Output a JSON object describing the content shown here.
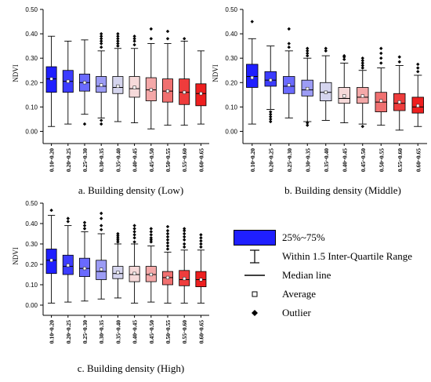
{
  "chart_data": [
    {
      "type": "box",
      "panel": "a",
      "caption": "a. Building density (Low)",
      "ylabel": "NDVI",
      "ylim": [
        -0.05,
        0.5
      ],
      "yticks": [
        "0.00",
        "0.10",
        "0.20",
        "0.30",
        "0.40",
        "0.50"
      ],
      "categories": [
        "0.10~0.20",
        "0.20~0.25",
        "0.25~0.30",
        "0.30~0.35",
        "0.35~0.40",
        "0.40~0.45",
        "0.45~0.50",
        "0.50~0.55",
        "0.55~0.60",
        "0.60~0.65"
      ],
      "colors": [
        "#1f1fff",
        "#3c3cff",
        "#6a6aff",
        "#9c9cf5",
        "#d5d5ee",
        "#f6dada",
        "#f4a8a8",
        "#f07070",
        "#ee3c3c",
        "#ee1f1f"
      ],
      "boxes": [
        {
          "whisker_low": 0.02,
          "q1": 0.16,
          "median": 0.215,
          "q3": 0.265,
          "whisker_high": 0.39,
          "mean": 0.215,
          "outliers": []
        },
        {
          "whisker_low": 0.03,
          "q1": 0.16,
          "median": 0.205,
          "q3": 0.25,
          "whisker_high": 0.37,
          "mean": 0.205,
          "outliers": []
        },
        {
          "whisker_low": 0.07,
          "q1": 0.165,
          "median": 0.2,
          "q3": 0.235,
          "whisker_high": 0.375,
          "mean": 0.2,
          "outliers": [
            0.03
          ]
        },
        {
          "whisker_low": 0.055,
          "q1": 0.16,
          "median": 0.185,
          "q3": 0.225,
          "whisker_high": 0.33,
          "mean": 0.19,
          "outliers": [
            0.345,
            0.36,
            0.37,
            0.38,
            0.39,
            0.4,
            0.045,
            0.03
          ]
        },
        {
          "whisker_low": 0.04,
          "q1": 0.155,
          "median": 0.18,
          "q3": 0.225,
          "whisker_high": 0.34,
          "mean": 0.185,
          "outliers": [
            0.35,
            0.36,
            0.37,
            0.38,
            0.39,
            0.4
          ]
        },
        {
          "whisker_low": 0.035,
          "q1": 0.14,
          "median": 0.175,
          "q3": 0.225,
          "whisker_high": 0.34,
          "mean": 0.18,
          "outliers": [
            0.355,
            0.37,
            0.38,
            0.39
          ]
        },
        {
          "whisker_low": 0.01,
          "q1": 0.125,
          "median": 0.17,
          "q3": 0.22,
          "whisker_high": 0.36,
          "mean": 0.17,
          "outliers": [
            0.38,
            0.42
          ]
        },
        {
          "whisker_low": 0.025,
          "q1": 0.12,
          "median": 0.165,
          "q3": 0.215,
          "whisker_high": 0.36,
          "mean": 0.165,
          "outliers": [
            0.38,
            0.41
          ]
        },
        {
          "whisker_low": 0.025,
          "q1": 0.11,
          "median": 0.16,
          "q3": 0.215,
          "whisker_high": 0.37,
          "mean": 0.16,
          "outliers": [
            0.38
          ]
        },
        {
          "whisker_low": 0.03,
          "q1": 0.105,
          "median": 0.155,
          "q3": 0.195,
          "whisker_high": 0.33,
          "mean": 0.155,
          "outliers": []
        }
      ]
    },
    {
      "type": "box",
      "panel": "b",
      "caption": "b. Building density (Middle)",
      "ylabel": "NDVI",
      "ylim": [
        -0.05,
        0.5
      ],
      "yticks": [
        "0.00",
        "0.10",
        "0.20",
        "0.30",
        "0.40",
        "0.50"
      ],
      "categories": [
        "0.10~0.20",
        "0.20~0.25",
        "0.25~0.30",
        "0.30~0.35",
        "0.35~0.40",
        "0.40~0.45",
        "0.45~0.50",
        "0.50~0.55",
        "0.55~0.60",
        "0.60~0.65"
      ],
      "colors": [
        "#1f1fff",
        "#3c3cff",
        "#6a6aff",
        "#9c9cf5",
        "#d5d5ee",
        "#f6dada",
        "#f4a8a8",
        "#f07070",
        "#ee3c3c",
        "#ee1f1f"
      ],
      "boxes": [
        {
          "whisker_low": 0.03,
          "q1": 0.18,
          "median": 0.225,
          "q3": 0.275,
          "whisker_high": 0.38,
          "mean": 0.22,
          "outliers": [
            0.45
          ]
        },
        {
          "whisker_low": 0.09,
          "q1": 0.185,
          "median": 0.21,
          "q3": 0.245,
          "whisker_high": 0.35,
          "mean": 0.21,
          "outliers": [
            0.08,
            0.07,
            0.06,
            0.05,
            0.04
          ]
        },
        {
          "whisker_low": 0.055,
          "q1": 0.155,
          "median": 0.185,
          "q3": 0.225,
          "whisker_high": 0.33,
          "mean": 0.19,
          "outliers": [
            0.345,
            0.36,
            0.42
          ]
        },
        {
          "whisker_low": 0.04,
          "q1": 0.145,
          "median": 0.17,
          "q3": 0.21,
          "whisker_high": 0.3,
          "mean": 0.175,
          "outliers": [
            0.31,
            0.32,
            0.33,
            0.34,
            0.035,
            0.025
          ]
        },
        {
          "whisker_low": 0.045,
          "q1": 0.125,
          "median": 0.16,
          "q3": 0.2,
          "whisker_high": 0.31,
          "mean": 0.16,
          "outliers": [
            0.33,
            0.34
          ]
        },
        {
          "whisker_low": 0.035,
          "q1": 0.115,
          "median": 0.135,
          "q3": 0.18,
          "whisker_high": 0.28,
          "mean": 0.145,
          "outliers": [
            0.295,
            0.305,
            0.31
          ]
        },
        {
          "whisker_low": 0.03,
          "q1": 0.115,
          "median": 0.14,
          "q3": 0.18,
          "whisker_high": 0.25,
          "mean": 0.145,
          "outliers": [
            0.26,
            0.27,
            0.28,
            0.29,
            0.3,
            0.02
          ]
        },
        {
          "whisker_low": 0.025,
          "q1": 0.08,
          "median": 0.12,
          "q3": 0.16,
          "whisker_high": 0.26,
          "mean": 0.125,
          "outliers": [
            0.28,
            0.3,
            0.32,
            0.34
          ]
        },
        {
          "whisker_low": 0.005,
          "q1": 0.085,
          "median": 0.115,
          "q3": 0.155,
          "whisker_high": 0.27,
          "mean": 0.12,
          "outliers": [
            0.285,
            0.305
          ]
        },
        {
          "whisker_low": 0.02,
          "q1": 0.075,
          "median": 0.1,
          "q3": 0.14,
          "whisker_high": 0.23,
          "mean": 0.105,
          "outliers": [
            0.245,
            0.26,
            0.275
          ]
        }
      ]
    },
    {
      "type": "box",
      "panel": "c",
      "caption": "c. Building density (High)",
      "ylabel": "NDVI",
      "ylim": [
        -0.05,
        0.5
      ],
      "yticks": [
        "0.00",
        "0.10",
        "0.20",
        "0.30",
        "0.40",
        "0.50"
      ],
      "categories": [
        "0.10~0.20",
        "0.20~0.25",
        "0.25~0.30",
        "0.30~0.35",
        "0.35~0.40",
        "0.40~0.45",
        "0.45~0.50",
        "0.50~0.55",
        "0.55~0.60",
        "0.60~0.65"
      ],
      "colors": [
        "#1f1fff",
        "#3c3cff",
        "#6a6aff",
        "#9c9cf5",
        "#d5d5ee",
        "#f6dada",
        "#f4a8a8",
        "#f07070",
        "#ee3c3c",
        "#ee1f1f"
      ],
      "boxes": [
        {
          "whisker_low": 0.01,
          "q1": 0.155,
          "median": 0.22,
          "q3": 0.275,
          "whisker_high": 0.44,
          "mean": 0.22,
          "outliers": [
            0.465
          ]
        },
        {
          "whisker_low": 0.015,
          "q1": 0.15,
          "median": 0.19,
          "q3": 0.245,
          "whisker_high": 0.39,
          "mean": 0.195,
          "outliers": [
            0.41,
            0.425
          ]
        },
        {
          "whisker_low": 0.02,
          "q1": 0.14,
          "median": 0.18,
          "q3": 0.23,
          "whisker_high": 0.36,
          "mean": 0.18,
          "outliers": [
            0.375,
            0.39,
            0.405
          ]
        },
        {
          "whisker_low": 0.03,
          "q1": 0.125,
          "median": 0.165,
          "q3": 0.22,
          "whisker_high": 0.35,
          "mean": 0.175,
          "outliers": [
            0.37,
            0.39,
            0.425,
            0.45
          ]
        },
        {
          "whisker_low": 0.035,
          "q1": 0.13,
          "median": 0.155,
          "q3": 0.19,
          "whisker_high": 0.3,
          "mean": 0.16,
          "outliers": [
            0.31,
            0.32,
            0.33,
            0.34,
            0.35
          ]
        },
        {
          "whisker_low": 0.01,
          "q1": 0.115,
          "median": 0.15,
          "q3": 0.19,
          "whisker_high": 0.3,
          "mean": 0.155,
          "outliers": [
            0.31,
            0.33,
            0.345,
            0.36,
            0.375,
            0.39
          ]
        },
        {
          "whisker_low": 0.015,
          "q1": 0.115,
          "median": 0.15,
          "q3": 0.19,
          "whisker_high": 0.29,
          "mean": 0.15,
          "outliers": [
            0.31,
            0.32,
            0.33,
            0.345,
            0.36,
            0.375
          ]
        },
        {
          "whisker_low": 0.01,
          "q1": 0.1,
          "median": 0.135,
          "q3": 0.165,
          "whisker_high": 0.26,
          "mean": 0.135,
          "outliers": [
            0.275,
            0.29,
            0.305,
            0.32,
            0.335,
            0.35,
            0.365,
            0.385
          ]
        },
        {
          "whisker_low": 0.01,
          "q1": 0.095,
          "median": 0.125,
          "q3": 0.17,
          "whisker_high": 0.27,
          "mean": 0.13,
          "outliers": [
            0.285,
            0.3,
            0.32,
            0.335,
            0.35,
            0.365,
            0.375
          ]
        },
        {
          "whisker_low": 0.01,
          "q1": 0.09,
          "median": 0.125,
          "q3": 0.165,
          "whisker_high": 0.27,
          "mean": 0.125,
          "outliers": [
            0.285,
            0.3,
            0.315,
            0.33,
            0.345
          ]
        }
      ]
    }
  ],
  "legend": {
    "box_label": "25%~75%",
    "whisker_label": "Within 1.5 Inter-Quartile Range",
    "median_label": "Median line",
    "average_label": "Average",
    "outlier_label": "Outlier",
    "box_color": "#1f1fff"
  }
}
